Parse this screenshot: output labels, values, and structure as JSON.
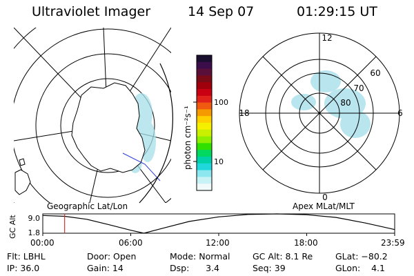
{
  "header": {
    "instrument": "Ultraviolet Imager",
    "date": "14 Sep 07",
    "time": "01:29:15 UT"
  },
  "geo_panel": {
    "label": "Geographic Lat/Lon"
  },
  "mag_panel": {
    "label": "Apex MLat/MLT",
    "mlt_labels": [
      "12",
      "18",
      "6",
      "0"
    ],
    "lat_labels": [
      "60",
      "70",
      "80"
    ]
  },
  "colorbar": {
    "unit_label": "photon cm⁻²s⁻¹",
    "tick_labels": [
      "100",
      "10"
    ],
    "colors": [
      "#1a0f2e",
      "#3b0d4a",
      "#5a0f3a",
      "#7a0a16",
      "#a0000c",
      "#c80012",
      "#e0221a",
      "#ef5a10",
      "#f59a00",
      "#ffd000",
      "#f4f000",
      "#c8f000",
      "#8ef000",
      "#30e000",
      "#00d860",
      "#00d0a8",
      "#20d8dc",
      "#8ce8ee",
      "#c8f2f6",
      "#f0fafa"
    ]
  },
  "altitude_plot": {
    "ylabel": "GC Alt",
    "yticks": [
      "9.0",
      "1.8"
    ],
    "xticks": [
      "00:00",
      "06:00",
      "12:00",
      "18:00",
      "23:59"
    ],
    "current_time_hours": 1.49,
    "orbit": [
      {
        "t": 0,
        "alt": 8.4
      },
      {
        "t": 1.5,
        "alt": 8.1
      },
      {
        "t": 3,
        "alt": 7.0
      },
      {
        "t": 4.5,
        "alt": 5.0
      },
      {
        "t": 6,
        "alt": 2.9
      },
      {
        "t": 6.9,
        "alt": 1.8
      },
      {
        "t": 8,
        "alt": 3.4
      },
      {
        "t": 10,
        "alt": 6.2
      },
      {
        "t": 12,
        "alt": 7.9
      },
      {
        "t": 14,
        "alt": 8.8
      },
      {
        "t": 16,
        "alt": 9.0
      },
      {
        "t": 18,
        "alt": 8.7
      },
      {
        "t": 20,
        "alt": 7.7
      },
      {
        "t": 22,
        "alt": 5.6
      },
      {
        "t": 23.98,
        "alt": 3.2
      }
    ],
    "ymin": 1.8,
    "ymax": 9.0
  },
  "info": {
    "col1": [
      "Flt: LBHL",
      "IP: 36.0"
    ],
    "col2": [
      "Door: Open",
      "Gain: 14"
    ],
    "col3": [
      "Mode: Normal",
      "Dsp:      3.4"
    ],
    "col4": [
      "GC Alt: 8.1 Re",
      "Seq: 39"
    ],
    "col5": [
      "GLat: −80.2",
      "GLon:    4.1"
    ]
  }
}
